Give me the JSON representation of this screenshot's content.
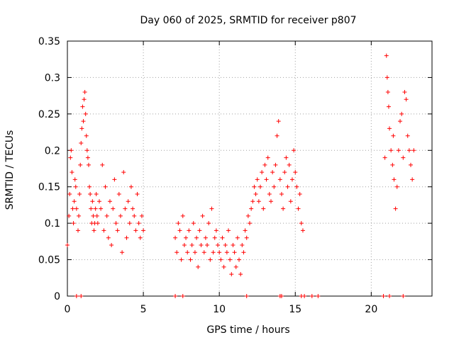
{
  "chart_data": {
    "type": "scatter",
    "title": "Day 060 of 2025, SRMTID for receiver p807",
    "xlabel": "GPS time / hours",
    "ylabel": "SRMTID / TECUs",
    "xlim": [
      0,
      24
    ],
    "ylim": [
      0,
      0.35
    ],
    "xticks": [
      0,
      5,
      10,
      15,
      20
    ],
    "yticks": [
      0,
      0.05,
      0.1,
      0.15,
      0.2,
      0.25,
      0.3,
      0.35
    ],
    "xtick_labels": [
      "0",
      "5",
      "10",
      "15",
      "20"
    ],
    "ytick_labels": [
      "0",
      "0.05",
      "0.1",
      "0.15",
      "0.2",
      "0.25",
      "0.3",
      "0.35"
    ],
    "grid": true,
    "marker": "+",
    "color": "#ff0000",
    "series": [
      {
        "name": "SRMTID",
        "x": [
          0.0,
          0.1,
          0.15,
          0.2,
          0.25,
          0.3,
          0.35,
          0.4,
          0.45,
          0.5,
          0.55,
          0.6,
          0.7,
          0.75,
          0.8,
          0.85,
          0.9,
          0.95,
          1.0,
          1.05,
          1.1,
          1.15,
          1.2,
          1.25,
          1.3,
          1.35,
          1.4,
          1.45,
          1.5,
          1.55,
          1.6,
          1.65,
          1.7,
          1.75,
          1.8,
          1.85,
          1.9,
          1.95,
          2.0,
          2.1,
          2.2,
          2.3,
          2.4,
          2.5,
          2.6,
          2.7,
          2.8,
          2.9,
          3.0,
          3.1,
          3.2,
          3.3,
          3.4,
          3.5,
          3.6,
          3.7,
          3.8,
          3.9,
          4.0,
          4.1,
          4.2,
          4.3,
          4.4,
          4.5,
          4.6,
          4.7,
          4.8,
          4.9,
          5.0,
          7.1,
          7.2,
          7.3,
          7.4,
          7.5,
          7.6,
          7.7,
          7.8,
          7.9,
          8.0,
          8.1,
          8.2,
          8.3,
          8.4,
          8.5,
          8.6,
          8.7,
          8.8,
          8.9,
          9.0,
          9.1,
          9.2,
          9.3,
          9.4,
          9.5,
          9.6,
          9.7,
          9.8,
          9.9,
          10.0,
          10.1,
          10.2,
          10.3,
          10.4,
          10.5,
          10.6,
          10.7,
          10.8,
          10.9,
          11.0,
          11.1,
          11.2,
          11.3,
          11.4,
          11.5,
          11.6,
          11.7,
          11.8,
          11.9,
          12.0,
          12.1,
          12.2,
          12.3,
          12.4,
          12.5,
          12.6,
          12.7,
          12.8,
          12.9,
          13.0,
          13.1,
          13.2,
          13.3,
          13.4,
          13.5,
          13.6,
          13.7,
          13.8,
          13.9,
          14.0,
          14.1,
          14.2,
          14.3,
          14.4,
          14.5,
          14.6,
          14.7,
          14.8,
          14.9,
          15.0,
          15.1,
          15.2,
          15.3,
          15.4,
          15.5,
          20.9,
          21.0,
          21.05,
          21.1,
          21.15,
          21.2,
          21.3,
          21.4,
          21.45,
          21.5,
          21.6,
          21.7,
          21.8,
          21.9,
          22.0,
          22.1,
          22.2,
          22.3,
          22.4,
          22.5,
          22.6,
          22.7,
          22.8
        ],
        "y": [
          0.07,
          0.11,
          0.14,
          0.19,
          0.2,
          0.17,
          0.12,
          0.1,
          0.13,
          0.16,
          0.15,
          0.12,
          0.09,
          0.11,
          0.14,
          0.18,
          0.21,
          0.23,
          0.26,
          0.24,
          0.27,
          0.28,
          0.25,
          0.22,
          0.2,
          0.19,
          0.18,
          0.15,
          0.14,
          0.12,
          0.1,
          0.13,
          0.11,
          0.09,
          0.1,
          0.12,
          0.14,
          0.11,
          0.1,
          0.13,
          0.12,
          0.18,
          0.09,
          0.15,
          0.11,
          0.08,
          0.13,
          0.07,
          0.12,
          0.16,
          0.1,
          0.09,
          0.14,
          0.11,
          0.06,
          0.17,
          0.12,
          0.08,
          0.13,
          0.1,
          0.15,
          0.12,
          0.11,
          0.09,
          0.14,
          0.1,
          0.08,
          0.11,
          0.09,
          0.08,
          0.06,
          0.1,
          0.09,
          0.05,
          0.11,
          0.07,
          0.08,
          0.06,
          0.09,
          0.05,
          0.07,
          0.1,
          0.06,
          0.08,
          0.04,
          0.09,
          0.07,
          0.11,
          0.06,
          0.08,
          0.07,
          0.1,
          0.05,
          0.12,
          0.06,
          0.08,
          0.09,
          0.07,
          0.06,
          0.05,
          0.08,
          0.04,
          0.07,
          0.06,
          0.09,
          0.05,
          0.03,
          0.07,
          0.06,
          0.04,
          0.08,
          0.05,
          0.03,
          0.07,
          0.06,
          0.09,
          0.08,
          0.11,
          0.1,
          0.12,
          0.13,
          0.15,
          0.14,
          0.16,
          0.13,
          0.15,
          0.17,
          0.12,
          0.18,
          0.16,
          0.19,
          0.14,
          0.13,
          0.17,
          0.15,
          0.18,
          0.22,
          0.24,
          0.16,
          0.14,
          0.12,
          0.17,
          0.19,
          0.15,
          0.18,
          0.13,
          0.16,
          0.2,
          0.17,
          0.15,
          0.12,
          0.14,
          0.1,
          0.09,
          0.19,
          0.33,
          0.3,
          0.28,
          0.26,
          0.23,
          0.2,
          0.18,
          0.22,
          0.16,
          0.12,
          0.15,
          0.2,
          0.24,
          0.25,
          0.19,
          0.28,
          0.27,
          0.22,
          0.2,
          0.18,
          0.16,
          0.2
        ],
        "x_zero": [
          0.6,
          0.9,
          7.1,
          7.6,
          11.8,
          14.0,
          14.1,
          15.4,
          15.6,
          16.1,
          16.5,
          20.8,
          21.2,
          22.1
        ]
      }
    ]
  }
}
